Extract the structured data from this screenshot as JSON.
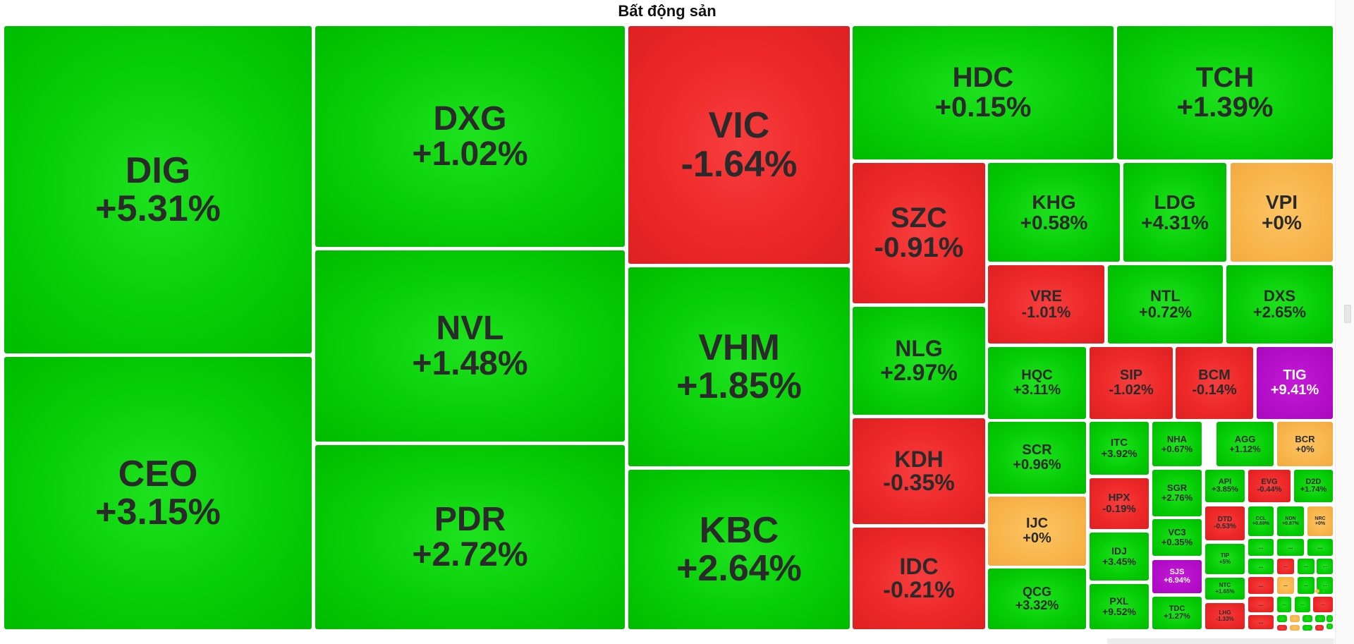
{
  "header": {
    "title": "Bất động sản"
  },
  "colors": {
    "up": "#00c800",
    "down": "#e52626",
    "flat": "#f8b54c",
    "ceiling": "#b40ec8",
    "text": "#2a2a2a",
    "ceiling_text": "#ffffff"
  },
  "tiles": [
    {
      "symbol": "DIG",
      "change": "+5.31%",
      "trend": "up"
    },
    {
      "symbol": "CEO",
      "change": "+3.15%",
      "trend": "up"
    },
    {
      "symbol": "DXG",
      "change": "+1.02%",
      "trend": "up"
    },
    {
      "symbol": "NVL",
      "change": "+1.48%",
      "trend": "up"
    },
    {
      "symbol": "PDR",
      "change": "+2.72%",
      "trend": "up"
    },
    {
      "symbol": "VIC",
      "change": "-1.64%",
      "trend": "down"
    },
    {
      "symbol": "VHM",
      "change": "+1.85%",
      "trend": "up"
    },
    {
      "symbol": "KBC",
      "change": "+2.64%",
      "trend": "up"
    },
    {
      "symbol": "HDC",
      "change": "+0.15%",
      "trend": "up"
    },
    {
      "symbol": "TCH",
      "change": "+1.39%",
      "trend": "up"
    },
    {
      "symbol": "SZC",
      "change": "-0.91%",
      "trend": "down"
    },
    {
      "symbol": "NLG",
      "change": "+2.97%",
      "trend": "up"
    },
    {
      "symbol": "KDH",
      "change": "-0.35%",
      "trend": "down"
    },
    {
      "symbol": "IDC",
      "change": "-0.21%",
      "trend": "down"
    },
    {
      "symbol": "KHG",
      "change": "+0.58%",
      "trend": "up"
    },
    {
      "symbol": "LDG",
      "change": "+4.31%",
      "trend": "up"
    },
    {
      "symbol": "VPI",
      "change": "+0%",
      "trend": "flat"
    },
    {
      "symbol": "VRE",
      "change": "-1.01%",
      "trend": "down"
    },
    {
      "symbol": "NTL",
      "change": "+0.72%",
      "trend": "up"
    },
    {
      "symbol": "DXS",
      "change": "+2.65%",
      "trend": "up"
    },
    {
      "symbol": "HQC",
      "change": "+3.11%",
      "trend": "up"
    },
    {
      "symbol": "SIP",
      "change": "-1.02%",
      "trend": "down"
    },
    {
      "symbol": "BCM",
      "change": "-0.14%",
      "trend": "down"
    },
    {
      "symbol": "TIG",
      "change": "+9.41%",
      "trend": "ceiling"
    },
    {
      "symbol": "SCR",
      "change": "+0.96%",
      "trend": "up"
    },
    {
      "symbol": "IJC",
      "change": "+0%",
      "trend": "flat"
    },
    {
      "symbol": "QCG",
      "change": "+3.32%",
      "trend": "up"
    },
    {
      "symbol": "ITC",
      "change": "+3.92%",
      "trend": "up"
    },
    {
      "symbol": "NHA",
      "change": "+0.67%",
      "trend": "up"
    },
    {
      "symbol": "AGG",
      "change": "+1.12%",
      "trend": "up"
    },
    {
      "symbol": "BCR",
      "change": "+0%",
      "trend": "flat"
    },
    {
      "symbol": "HPX",
      "change": "-0.19%",
      "trend": "down"
    },
    {
      "symbol": "IDJ",
      "change": "+3.45%",
      "trend": "up"
    },
    {
      "symbol": "PXL",
      "change": "+9.52%",
      "trend": "up"
    },
    {
      "symbol": "SGR",
      "change": "+2.76%",
      "trend": "up"
    },
    {
      "symbol": "VC3",
      "change": "+0.35%",
      "trend": "up"
    },
    {
      "symbol": "SJS",
      "change": "+6.94%",
      "trend": "ceiling"
    },
    {
      "symbol": "TDC",
      "change": "+1.27%",
      "trend": "up"
    },
    {
      "symbol": "API",
      "change": "+3.85%",
      "trend": "up"
    },
    {
      "symbol": "EVG",
      "change": "-0.44%",
      "trend": "down"
    },
    {
      "symbol": "D2D",
      "change": "+1.74%",
      "trend": "up"
    },
    {
      "symbol": "DTD",
      "change": "-0.53%",
      "trend": "down"
    },
    {
      "symbol": "CCL",
      "change": "+0.69%",
      "trend": "up"
    },
    {
      "symbol": "NDN",
      "change": "+0.87%",
      "trend": "up"
    },
    {
      "symbol": "NRC",
      "change": "+0%",
      "trend": "flat"
    },
    {
      "symbol": "TIP",
      "change": "+5%",
      "trend": "up"
    },
    {
      "symbol": "NTC",
      "change": "+1.65%",
      "trend": "up"
    },
    {
      "symbol": "LHG",
      "change": "-1.33%",
      "trend": "down"
    },
    {
      "symbol": "...",
      "change": "",
      "trend": "up"
    },
    {
      "symbol": "...",
      "change": "",
      "trend": "up"
    },
    {
      "symbol": "...",
      "change": "",
      "trend": "up"
    },
    {
      "symbol": "...",
      "change": "",
      "trend": "up"
    },
    {
      "symbol": "...",
      "change": "",
      "trend": "down"
    },
    {
      "symbol": "...",
      "change": "",
      "trend": "up"
    },
    {
      "symbol": "...",
      "change": "",
      "trend": "up"
    },
    {
      "symbol": "...",
      "change": "",
      "trend": "down"
    },
    {
      "symbol": "...",
      "change": "",
      "trend": "flat"
    },
    {
      "symbol": "...",
      "change": "",
      "trend": "up"
    },
    {
      "symbol": "...",
      "change": "",
      "trend": "up"
    },
    {
      "symbol": "...",
      "change": "",
      "trend": "down"
    },
    {
      "symbol": "...",
      "change": "",
      "trend": "up"
    },
    {
      "symbol": "...",
      "change": "",
      "trend": "up"
    },
    {
      "symbol": "...",
      "change": "",
      "trend": "down"
    },
    {
      "symbol": "...",
      "change": "",
      "trend": "down"
    },
    {
      "symbol": "",
      "change": "",
      "trend": "up"
    },
    {
      "symbol": "",
      "change": "",
      "trend": "flat"
    },
    {
      "symbol": "",
      "change": "",
      "trend": "up"
    },
    {
      "symbol": "",
      "change": "",
      "trend": "up"
    },
    {
      "symbol": "",
      "change": "",
      "trend": "down"
    },
    {
      "symbol": "",
      "change": "",
      "trend": "flat"
    },
    {
      "symbol": "",
      "change": "",
      "trend": "up"
    },
    {
      "symbol": "",
      "change": "",
      "trend": "down"
    },
    {
      "symbol": "",
      "change": "",
      "trend": "up"
    },
    {
      "symbol": "",
      "change": "",
      "trend": "up"
    },
    {
      "symbol": "",
      "change": "",
      "trend": "flat"
    },
    {
      "symbol": "",
      "change": "",
      "trend": "up"
    }
  ]
}
